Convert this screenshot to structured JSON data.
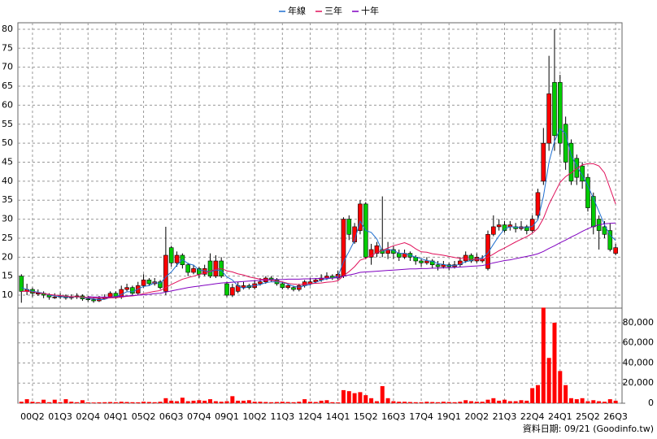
{
  "chart_data": {
    "type": "candlestick",
    "source": "資料日期: 09/21 (Goodinfo.tw)",
    "categories": [
      null,
      null,
      "00Q2",
      null,
      null,
      null,
      null,
      "01Q3",
      null,
      null,
      null,
      null,
      "02Q4",
      null,
      null,
      null,
      null,
      "04Q1",
      null,
      null,
      null,
      null,
      "05Q2",
      null,
      null,
      null,
      null,
      "06Q3",
      null,
      null,
      null,
      null,
      "07Q4",
      null,
      null,
      null,
      null,
      "09Q1",
      null,
      null,
      null,
      null,
      "10Q2",
      null,
      null,
      null,
      null,
      "11Q3",
      null,
      null,
      null,
      null,
      "12Q4",
      null,
      null,
      null,
      null,
      "14Q1",
      null,
      null,
      null,
      null,
      "15Q2",
      null,
      null,
      null,
      null,
      "16Q3",
      null,
      null,
      null,
      null,
      "17Q4",
      null,
      null,
      null,
      null,
      "19Q1",
      null,
      null,
      null,
      null,
      "20Q2",
      null,
      null,
      null,
      null,
      "21Q3",
      null,
      null,
      null,
      null,
      "22Q4",
      null,
      null,
      null,
      null,
      "24Q1",
      null,
      null,
      null,
      null,
      "25Q2",
      null,
      null,
      null,
      null,
      "26Q3"
    ],
    "open": [
      15,
      11,
      11.5,
      10.5,
      10.5,
      10,
      9.5,
      9.5,
      9.8,
      9.3,
      9.5,
      9.8,
      9,
      8.8,
      8.5,
      9,
      9.5,
      10.5,
      9.5,
      11.5,
      12,
      10.5,
      12.5,
      14,
      13,
      13.5,
      11,
      22.5,
      18.5,
      20.5,
      18,
      16,
      17,
      15.5,
      19,
      15,
      19,
      13,
      10,
      11,
      12,
      12.5,
      12,
      13,
      13.5,
      14.5,
      14,
      13,
      12,
      12,
      11.5,
      12.5,
      13,
      13.5,
      14,
      14.5,
      15,
      14.5,
      15,
      30,
      24,
      27,
      34,
      20,
      21,
      22,
      21,
      22,
      21,
      20,
      21,
      20,
      19,
      18.5,
      19,
      18,
      17.5,
      18,
      17.5,
      18,
      19,
      20.5,
      19,
      19,
      17,
      26,
      28,
      28.5,
      28,
      28,
      27.5,
      28,
      27,
      31,
      40,
      50,
      66,
      66,
      55,
      50,
      46,
      44,
      41,
      36,
      30,
      28,
      27,
      21
    ],
    "high": [
      15.5,
      13,
      12,
      11.5,
      11,
      10.5,
      10.5,
      10.5,
      10.2,
      10.2,
      10.5,
      10.2,
      9.8,
      9.5,
      9.8,
      10.2,
      11,
      11,
      12.5,
      13,
      12.5,
      13.5,
      15.5,
      14.5,
      14.5,
      14,
      28,
      23,
      21.5,
      21,
      18.5,
      18,
      17.5,
      18,
      21,
      20.5,
      20,
      13.5,
      13,
      13.5,
      13.5,
      13,
      14,
      14.5,
      15,
      15,
      14.5,
      13.5,
      13,
      12.5,
      13,
      14,
      14.5,
      14.5,
      15.5,
      16,
      15.5,
      16.5,
      30.5,
      31,
      29,
      35,
      34.5,
      23.5,
      24,
      36,
      24,
      23,
      22,
      22,
      21.5,
      20.5,
      19.5,
      20,
      19.5,
      19,
      19,
      18.5,
      19,
      20,
      21.5,
      21,
      21,
      20.5,
      27,
      31,
      30,
      29.5,
      29.5,
      29,
      29.5,
      28.5,
      31,
      38,
      54,
      73,
      80,
      68,
      57,
      51,
      47,
      45,
      42,
      37,
      31,
      29.5,
      29,
      23.5
    ],
    "low": [
      8,
      10,
      9.5,
      9.8,
      9.2,
      8.8,
      9,
      9,
      8.8,
      8.8,
      9,
      8.5,
      8.3,
      8,
      8.2,
      8.8,
      9.2,
      9,
      9,
      11,
      10,
      10,
      12,
      12.5,
      12.5,
      11.5,
      10,
      17.5,
      17.5,
      17,
      15,
      15.5,
      14.5,
      15,
      14.5,
      14.5,
      14.5,
      9.5,
      9.5,
      10.5,
      11.5,
      11.5,
      11.5,
      12.5,
      13,
      13.5,
      12.5,
      11.5,
      11.5,
      11,
      11,
      12,
      12.5,
      13,
      13.5,
      14,
      14,
      14,
      14.5,
      24.5,
      23.5,
      26,
      19.5,
      18,
      20,
      20,
      19.5,
      19.5,
      19,
      19.5,
      19,
      18,
      17.5,
      18,
      17,
      16.5,
      17,
      16.5,
      17,
      17.5,
      18.5,
      18.5,
      18.5,
      18.5,
      16.5,
      25.5,
      27,
      26.5,
      27,
      26.5,
      27,
      26,
      26.5,
      30,
      39,
      48,
      48,
      47,
      43,
      39,
      39,
      38,
      32,
      26,
      22,
      25,
      21.5,
      20.5
    ],
    "close": [
      11,
      11.5,
      10.5,
      10.5,
      10,
      9.5,
      9.5,
      9.8,
      9.3,
      9.5,
      9.8,
      9,
      8.8,
      8.5,
      9,
      9.5,
      10.5,
      9.5,
      11.5,
      12,
      10.5,
      12.5,
      14,
      13,
      13.5,
      12,
      20.5,
      18.5,
      20.5,
      18,
      16,
      17,
      15.5,
      17,
      15,
      19,
      15,
      10,
      12,
      12.5,
      12.5,
      12,
      13,
      13.5,
      14.5,
      14,
      13,
      12,
      12.5,
      11.5,
      12.5,
      13.5,
      13.5,
      14,
      14.5,
      15,
      14.5,
      15.5,
      30,
      26,
      28,
      34,
      20,
      22,
      23,
      21,
      22,
      21,
      20,
      21,
      20,
      19,
      18.5,
      19,
      18,
      17.5,
      18,
      17.5,
      18,
      19,
      20.5,
      19,
      20,
      19.5,
      26,
      28,
      28.5,
      27,
      28.5,
      27.5,
      28,
      27,
      30,
      37,
      50,
      63,
      52,
      50,
      45,
      40,
      41,
      40,
      33,
      28,
      27,
      26,
      22,
      22.5
    ],
    "up_color": "#ff0000",
    "down_color": "#00cc00",
    "ylim": [
      6.8,
      81.7
    ],
    "yticks": [
      10,
      15,
      20,
      25,
      30,
      35,
      40,
      45,
      50,
      55,
      60,
      65,
      70,
      75,
      80
    ],
    "grid": true,
    "series": [
      {
        "name": "年線",
        "color": "#1f6fd0",
        "values": [
          12,
          11.5,
          11,
          10.8,
          10.5,
          10,
          9.8,
          9.6,
          9.5,
          9.5,
          9.6,
          9.4,
          9.2,
          9,
          8.8,
          8.9,
          9.4,
          9.6,
          10.2,
          10.9,
          10.9,
          11.6,
          12.3,
          12.5,
          13.3,
          13.1,
          14.8,
          16.1,
          17.9,
          19.4,
          18.3,
          17.9,
          16.6,
          16.4,
          16.1,
          16.6,
          16.5,
          14.8,
          14,
          12.4,
          11.8,
          12.3,
          12.5,
          12.8,
          13.3,
          13.5,
          13.5,
          13.4,
          12.9,
          12.3,
          12.1,
          12.5,
          12.8,
          13.4,
          13.9,
          14.3,
          14.5,
          14.9,
          18.8,
          21.5,
          24.4,
          29.5,
          27,
          26.5,
          24.8,
          21.5,
          22,
          21.8,
          21,
          21,
          20.5,
          20,
          19.6,
          19.1,
          18.9,
          18.3,
          18.1,
          17.8,
          17.8,
          18.1,
          18.8,
          19.1,
          19.6,
          19.8,
          21.1,
          23.4,
          25.6,
          27.4,
          28,
          27.9,
          27.8,
          27.8,
          28.1,
          29.8,
          36,
          45,
          50.5,
          53.8,
          52.5,
          46.8,
          44,
          41.5,
          38.8,
          35.5,
          32,
          28.5,
          25.8,
          24.4
        ]
      },
      {
        "name": "三年",
        "color": "#e0105a",
        "values": [
          11,
          11,
          10.8,
          10.6,
          10.4,
          10.2,
          10,
          9.9,
          9.7,
          9.6,
          9.6,
          9.5,
          9.4,
          9.3,
          9.2,
          9.2,
          9.3,
          9.3,
          9.5,
          9.7,
          9.8,
          10,
          10.4,
          10.7,
          11,
          11.2,
          12,
          12.8,
          13.5,
          14.2,
          14.6,
          15,
          15.4,
          15.8,
          16.3,
          16.8,
          17,
          16.4,
          16.1,
          15.6,
          15.3,
          14.8,
          14.5,
          14.2,
          14.1,
          13.9,
          13.7,
          13.5,
          13.1,
          12.9,
          12.8,
          12.9,
          13,
          13.1,
          13.2,
          13.4,
          13.5,
          13.8,
          15.1,
          16.2,
          17.5,
          19.2,
          19.7,
          20.4,
          21.2,
          21.8,
          22.4,
          23,
          23.4,
          23.8,
          23.2,
          22.2,
          21.4,
          21.3,
          20.9,
          20.7,
          20.5,
          20.2,
          19.9,
          19.7,
          19.6,
          19.4,
          19.4,
          19.4,
          20,
          20.8,
          21.7,
          22.4,
          23.2,
          24,
          24.7,
          25.4,
          26.3,
          27.6,
          30.2,
          33.9,
          36.8,
          39.7,
          41.2,
          42.2,
          43.3,
          44.3,
          44.6,
          44.6,
          44,
          42.2,
          38.1,
          34
        ]
      },
      {
        "name": "十年",
        "color": "#8000c0",
        "values": [
          null,
          null,
          null,
          null,
          null,
          null,
          null,
          null,
          null,
          null,
          null,
          null,
          9.6,
          9.5,
          9.5,
          9.5,
          9.5,
          9.6,
          9.7,
          9.8,
          9.9,
          10,
          10.1,
          10.2,
          10.4,
          10.5,
          10.8,
          11.1,
          11.4,
          11.7,
          12,
          12.2,
          12.4,
          12.6,
          12.8,
          13,
          13.2,
          13.3,
          13.4,
          13.5,
          13.6,
          13.7,
          13.8,
          13.9,
          14,
          14.1,
          14.1,
          14.1,
          14.2,
          14.2,
          14.2,
          14.3,
          14.3,
          14.4,
          14.4,
          14.5,
          14.5,
          14.6,
          15,
          15.3,
          15.6,
          16,
          16.1,
          16.2,
          16.3,
          16.4,
          16.5,
          16.6,
          16.7,
          16.8,
          16.9,
          16.9,
          17,
          17,
          17.1,
          17.1,
          17.2,
          17.2,
          17.3,
          17.4,
          17.5,
          17.6,
          17.7,
          17.8,
          18.1,
          18.5,
          18.8,
          19.1,
          19.3,
          19.6,
          19.9,
          20.2,
          20.5,
          20.9,
          21.5,
          22.3,
          23,
          23.8,
          24.5,
          25.3,
          26,
          26.8,
          27.5,
          28.1,
          28.5,
          28.8,
          28.9,
          29
        ]
      }
    ],
    "volume": {
      "color": "#ff0000",
      "ylim": [
        0,
        93700
      ],
      "yticks": [
        0,
        {
          "value": 20000,
          "label": "20,000"
        },
        {
          "value": 40000,
          "label": "40,000"
        },
        {
          "value": 60000,
          "label": "60,000"
        },
        {
          "value": 80000,
          "label": "80,000"
        }
      ],
      "values": [
        1500,
        4000,
        1500,
        1000,
        3500,
        1000,
        3500,
        1000,
        4000,
        1500,
        1000,
        3000,
        800,
        700,
        900,
        1000,
        1200,
        1000,
        1500,
        1200,
        1000,
        900,
        1500,
        1200,
        1000,
        1500,
        5000,
        2500,
        2000,
        5500,
        2000,
        2500,
        3000,
        2500,
        4000,
        2000,
        1500,
        2000,
        7000,
        2500,
        2500,
        3000,
        1500,
        1500,
        1200,
        1000,
        1200,
        1500,
        1200,
        1000,
        1500,
        4000,
        1500,
        1200,
        2500,
        3000,
        1000,
        800,
        13000,
        12000,
        10000,
        11000,
        8000,
        5000,
        2000,
        17000,
        5000,
        2000,
        1500,
        1500,
        1200,
        1000,
        1000,
        1500,
        1200,
        1000,
        1500,
        1200,
        1000,
        1500,
        3000,
        2000,
        1500,
        1500,
        3500,
        5000,
        2500,
        3500,
        2000,
        2000,
        3000,
        2500,
        15000,
        18000,
        95000,
        45000,
        80000,
        32000,
        18000,
        5000,
        4000,
        5000,
        2000,
        3000,
        2000,
        1500,
        4000,
        2500
      ]
    }
  }
}
